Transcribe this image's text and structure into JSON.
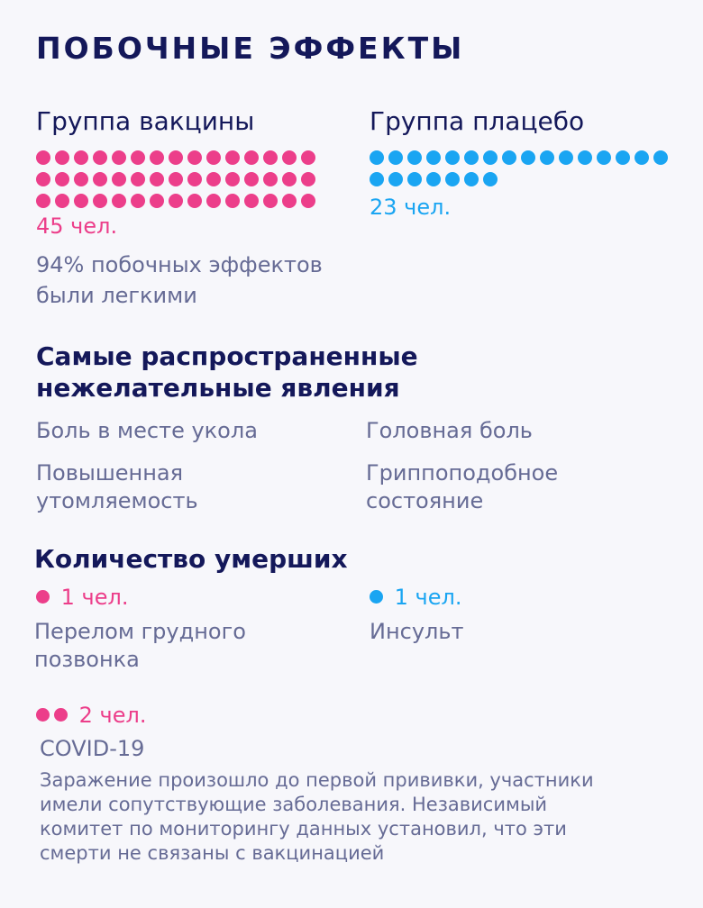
{
  "title": "ПОБОЧНЫЕ ЭФФЕКТЫ",
  "vaccine_group": {
    "title": "Группа вакцины",
    "count": 45,
    "count_label": "45 чел.",
    "note_line1": "94% побочных эффектов",
    "note_line2": "были легкими",
    "color": "#ec3e8a"
  },
  "placebo_group": {
    "title": "Группа плацебо",
    "count": 23,
    "count_label": "23 чел.",
    "color": "#1aa5f2"
  },
  "common_effects": {
    "heading_line1": "Самые распространенные",
    "heading_line2": "нежелательные явления",
    "items": [
      {
        "line1": "Боль в месте укола",
        "line2": ""
      },
      {
        "line1": "Головная боль",
        "line2": ""
      },
      {
        "line1": "Повышенная",
        "line2": "утомляемость"
      },
      {
        "line1": "Гриппоподобное",
        "line2": "состояние"
      }
    ]
  },
  "deaths": {
    "heading": "Количество умерших",
    "vaccine_death": {
      "count": 1,
      "label": "1 чел.",
      "cause_line1": "Перелом грудного",
      "cause_line2": "позвонка"
    },
    "placebo_death": {
      "count": 1,
      "label": "1 чел.",
      "cause": "Инсульт"
    },
    "covid_death": {
      "count": 2,
      "label": "2 чел.",
      "cause": "COVID-19",
      "note_lines": [
        "Заражение произошло до первой прививки, участники",
        "имели сопутствующие заболевания. Независимый",
        "комитет по мониторингу данных установил, что эти",
        "смерти не связаны с вакцинацией"
      ]
    }
  }
}
